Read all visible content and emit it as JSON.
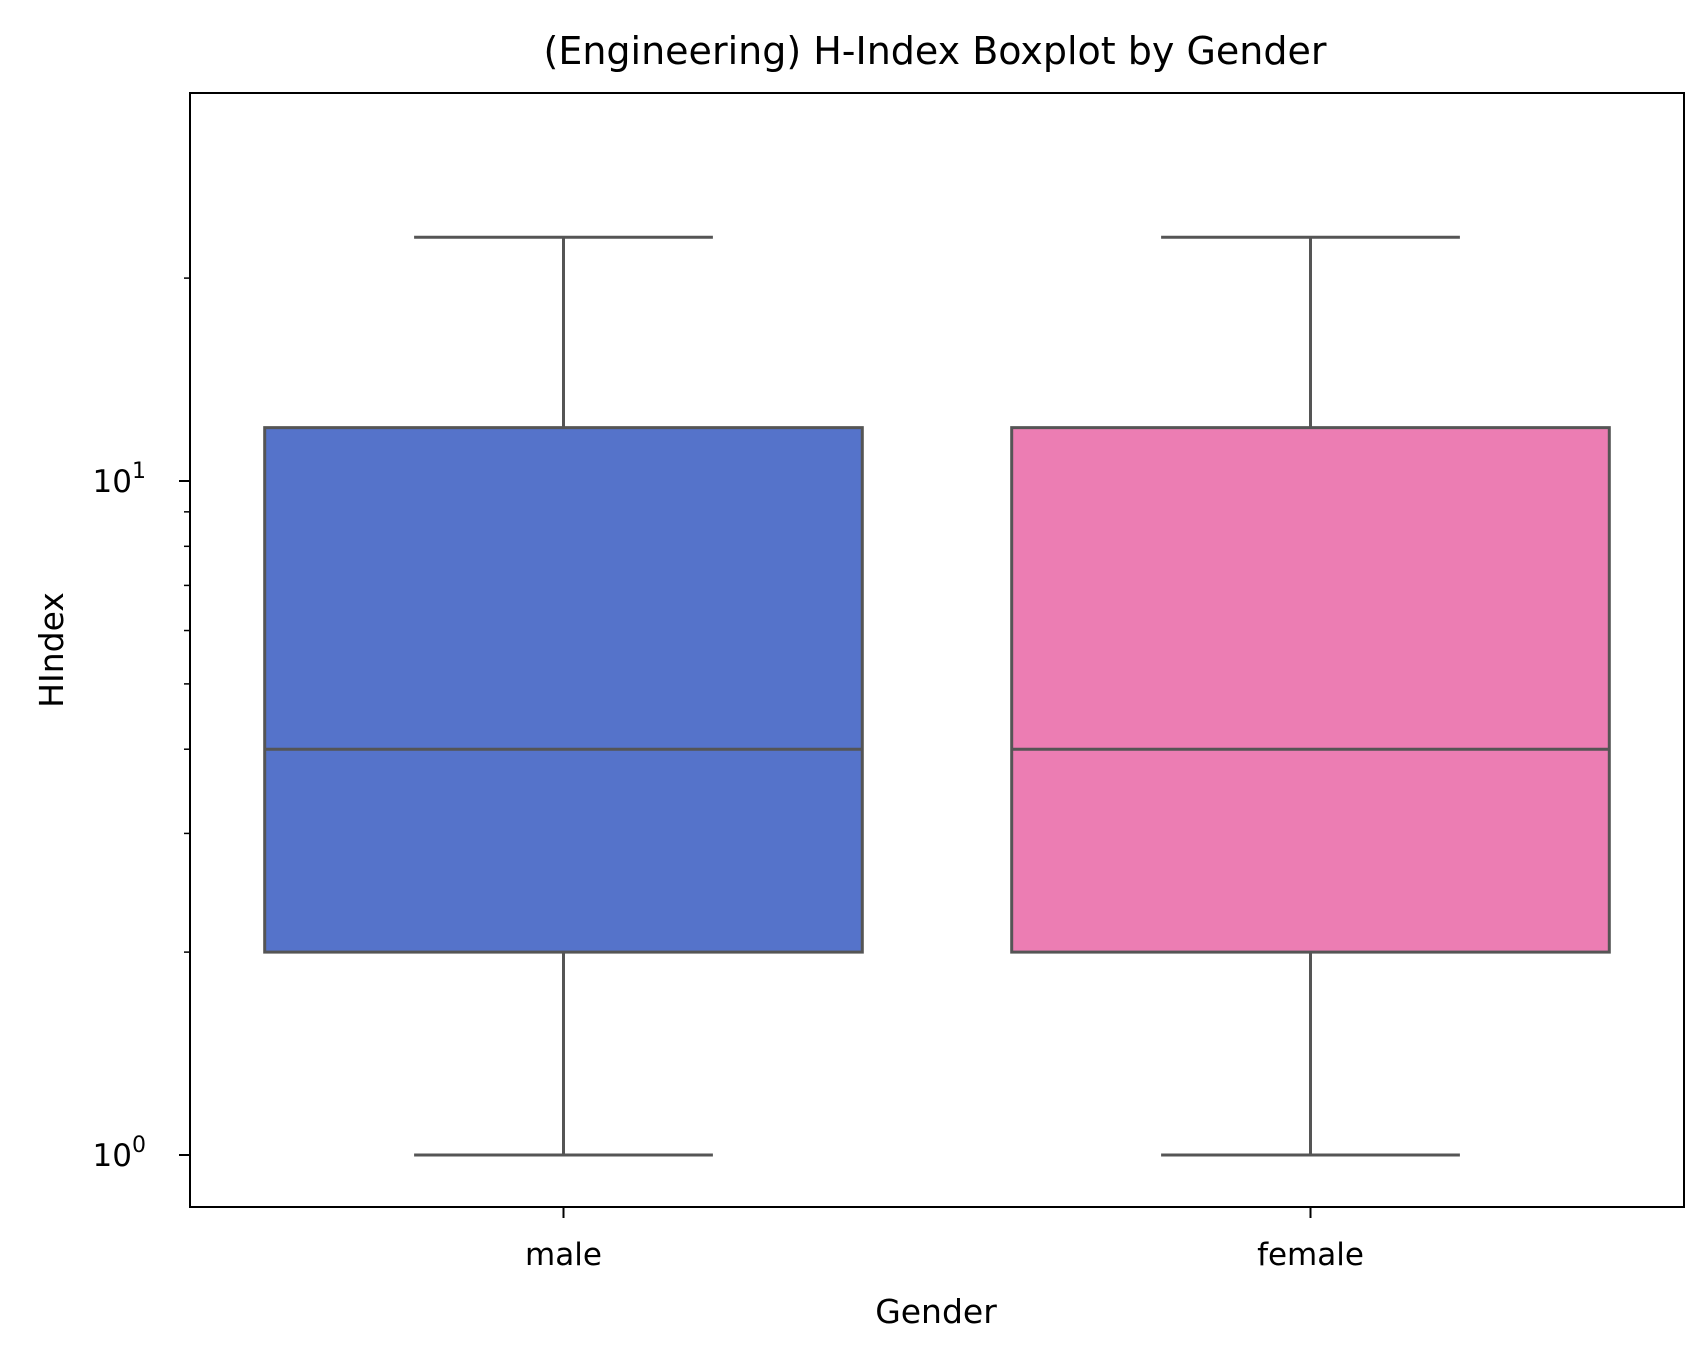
{
  "chart_data": {
    "type": "box",
    "title": "(Engineering) H-Index Boxplot by Gender",
    "xlabel": "Gender",
    "ylabel": "HIndex",
    "yscale": "log",
    "ylim": [
      0.9,
      26
    ],
    "yticks": [
      {
        "value": 1,
        "base": "10",
        "exp": "0"
      },
      {
        "value": 10,
        "base": "10",
        "exp": "1"
      }
    ],
    "categories": [
      "male",
      "female"
    ],
    "boxes": [
      {
        "category": "male",
        "whisker_low": 1,
        "q1": 2,
        "median": 4,
        "q3": 12,
        "whisker_high": 23,
        "color": "#5573CA"
      },
      {
        "category": "female",
        "whisker_low": 1,
        "q1": 2,
        "median": 4,
        "q3": 12,
        "whisker_high": 23,
        "color": "#EC7DB3"
      }
    ],
    "line_color": "#555555",
    "grid": false,
    "legend": "none"
  }
}
